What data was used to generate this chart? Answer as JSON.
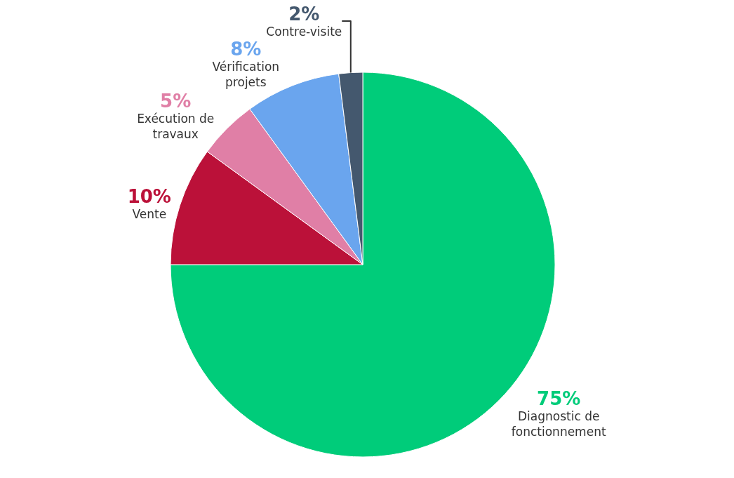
{
  "chart_data": {
    "type": "pie",
    "categories": [
      "Diagnostic de fonctionnement",
      "Vente",
      "Exécution de travaux",
      "Vérification projets",
      "Contre-visite"
    ],
    "values": [
      75,
      10,
      5,
      8,
      2
    ],
    "colors": [
      "#00cc7a",
      "#bb1139",
      "#e07fa6",
      "#6aa5ee",
      "#44586e"
    ],
    "value_labels": [
      "75%",
      "10%",
      "5%",
      "8%",
      "2%"
    ],
    "legend": false
  }
}
